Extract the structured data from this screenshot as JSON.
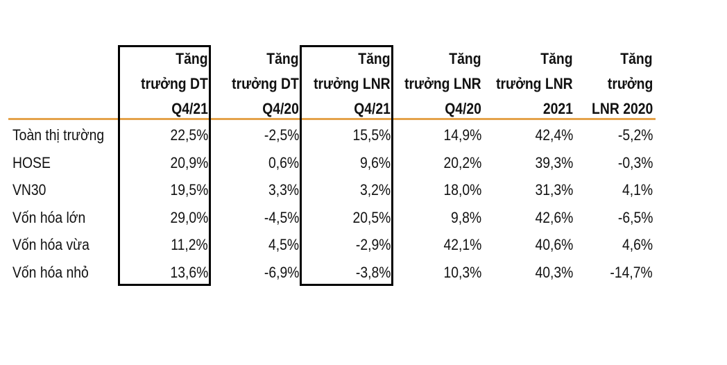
{
  "table": {
    "header": [
      [
        "Tăng",
        "trưởng DT",
        "Q4/21"
      ],
      [
        "Tăng",
        "trưởng DT",
        "Q4/20"
      ],
      [
        "Tăng",
        "trưởng LNR",
        "Q4/21"
      ],
      [
        "Tăng",
        "trưởng LNR",
        "Q4/20"
      ],
      [
        "Tăng",
        "trưởng LNR",
        "2021"
      ],
      [
        "Tăng",
        "trưởng",
        "LNR 2020"
      ]
    ],
    "rows": [
      [
        "Toàn thị trường",
        "22,5%",
        "-2,5%",
        "15,5%",
        "14,9%",
        "42,4%",
        "-5,2%"
      ],
      [
        "HOSE",
        "20,9%",
        "0,6%",
        "9,6%",
        "20,2%",
        "39,3%",
        "-0,3%"
      ],
      [
        "VN30",
        "19,5%",
        "3,3%",
        "3,2%",
        "18,0%",
        "31,3%",
        "4,1%"
      ],
      [
        "Vốn hóa lớn",
        "29,0%",
        "-4,5%",
        "20,5%",
        "9,8%",
        "42,6%",
        "-6,5%"
      ],
      [
        "Vốn hóa vừa",
        "11,2%",
        "4,5%",
        "-2,9%",
        "42,1%",
        "40,6%",
        "4,6%"
      ],
      [
        "Vốn hóa nhỏ",
        "13,6%",
        "-6,9%",
        "-3,8%",
        "10,3%",
        "40,3%",
        "-14,7%"
      ]
    ]
  }
}
